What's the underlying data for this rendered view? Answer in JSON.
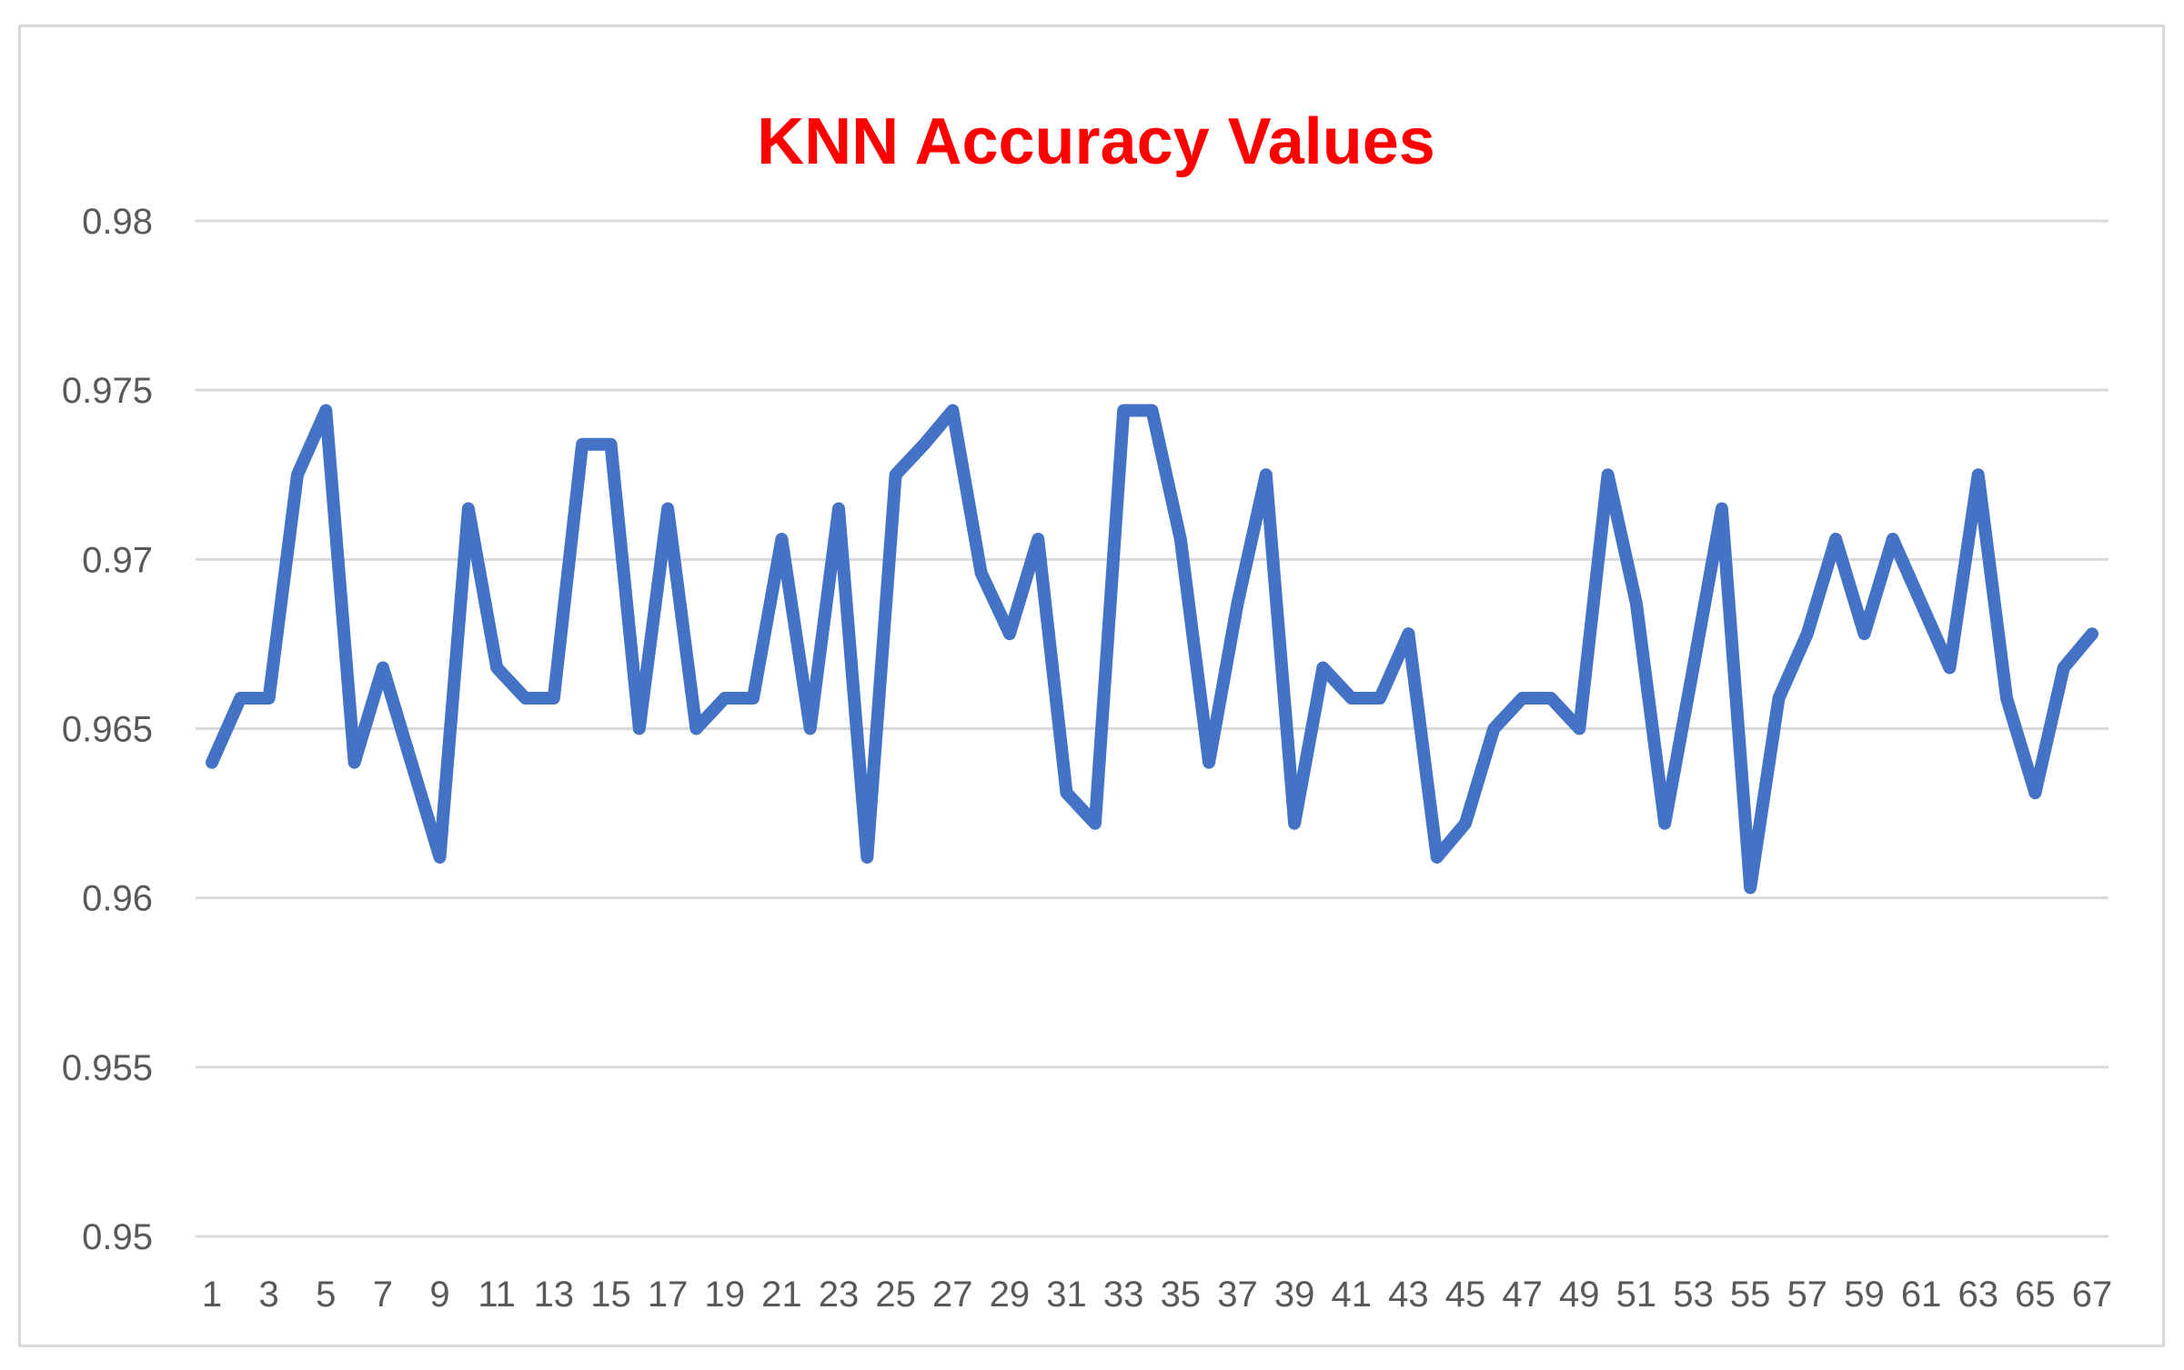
{
  "colors": {
    "title": "#ff0000",
    "line": "#4472c4",
    "grid": "#d9d9d9",
    "tick_text": "#595959",
    "border": "#d9d9d9"
  },
  "chart_data": {
    "type": "line",
    "title": "KNN Accuracy Values",
    "xlabel": "",
    "ylabel": "",
    "grid": true,
    "legend": "none",
    "ylim": [
      0.95,
      0.98
    ],
    "y_ticks": [
      "0.95",
      "0.955",
      "0.96",
      "0.965",
      "0.97",
      "0.975",
      "0.98"
    ],
    "x_tick_labels": [
      "1",
      "3",
      "5",
      "7",
      "9",
      "11",
      "13",
      "15",
      "17",
      "19",
      "21",
      "23",
      "25",
      "27",
      "29",
      "31",
      "33",
      "35",
      "37",
      "39",
      "41",
      "43",
      "45",
      "47",
      "49",
      "51",
      "53",
      "55",
      "57",
      "59",
      "61",
      "63",
      "65",
      "67"
    ],
    "x": [
      1,
      2,
      3,
      4,
      5,
      6,
      7,
      8,
      9,
      10,
      11,
      12,
      13,
      14,
      15,
      16,
      17,
      18,
      19,
      20,
      21,
      22,
      23,
      24,
      25,
      26,
      27,
      28,
      29,
      30,
      31,
      32,
      33,
      34,
      35,
      36,
      37,
      38,
      39,
      40,
      41,
      42,
      43,
      44,
      45,
      46,
      47,
      48,
      49,
      50,
      51,
      52,
      53,
      54,
      55,
      56,
      57,
      58,
      59,
      60,
      61,
      62,
      63,
      64,
      65,
      66,
      67
    ],
    "series": [
      {
        "values": [
          0.964,
          0.9659,
          0.9659,
          0.9725,
          0.9744,
          0.964,
          0.9668,
          0.964,
          0.9612,
          0.9715,
          0.9668,
          0.9659,
          0.9659,
          0.9734,
          0.9734,
          0.965,
          0.9715,
          0.965,
          0.9659,
          0.9659,
          0.9706,
          0.965,
          0.9715,
          0.9612,
          0.9725,
          0.9734,
          0.9744,
          0.9696,
          0.9678,
          0.9706,
          0.9631,
          0.9622,
          0.9744,
          0.9744,
          0.9706,
          0.964,
          0.9687,
          0.9725,
          0.9622,
          0.9668,
          0.9659,
          0.9659,
          0.9678,
          0.9612,
          0.9622,
          0.965,
          0.9659,
          0.9659,
          0.965,
          0.9725,
          0.9687,
          0.9622,
          0.9668,
          0.9715,
          0.9603,
          0.9659,
          0.9678,
          0.9706,
          0.9678,
          0.9706,
          0.9687,
          0.9668,
          0.9725,
          0.9659,
          0.9631,
          0.9668,
          0.9678
        ]
      }
    ]
  }
}
